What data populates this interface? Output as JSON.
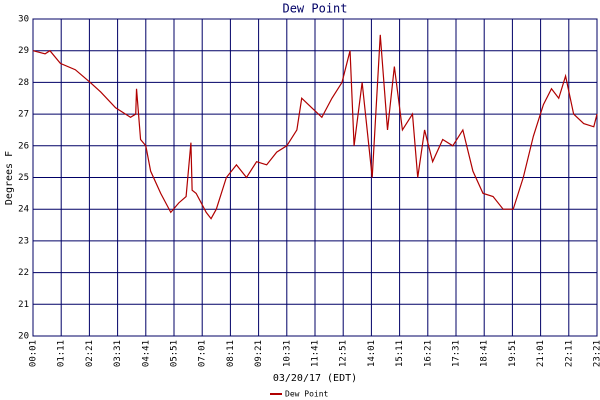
{
  "chart_data": {
    "type": "line",
    "title": "Dew Point",
    "xlabel": "03/20/17 (EDT)",
    "ylabel": "Degrees F",
    "x": [
      1,
      31,
      43,
      69,
      106,
      143,
      169,
      206,
      243,
      256,
      258,
      268,
      281,
      293,
      318,
      343,
      363,
      381,
      393,
      396,
      406,
      431,
      443,
      456,
      481,
      506,
      531,
      556,
      581,
      606,
      631,
      656,
      668,
      693,
      718,
      743,
      768,
      788,
      798,
      818,
      843,
      863,
      881,
      898,
      918,
      943,
      956,
      973,
      993,
      1018,
      1043,
      1068,
      1093,
      1118,
      1143,
      1168,
      1193,
      1218,
      1243,
      1268,
      1288,
      1306,
      1323,
      1343,
      1368,
      1393,
      1401
    ],
    "series": [
      {
        "name": "Dew Point",
        "color": "#b00000",
        "values": [
          29.0,
          28.9,
          29.0,
          28.6,
          28.4,
          28.0,
          27.7,
          27.2,
          26.9,
          27.0,
          27.8,
          26.2,
          26.0,
          25.2,
          24.5,
          23.9,
          24.2,
          24.4,
          26.1,
          24.6,
          24.5,
          23.9,
          23.7,
          24.0,
          25.0,
          25.4,
          25.0,
          25.5,
          25.4,
          25.8,
          26.0,
          26.5,
          27.5,
          27.2,
          26.9,
          27.5,
          28.0,
          29.0,
          26.0,
          28.0,
          25.0,
          29.5,
          26.5,
          28.5,
          26.5,
          27.0,
          25.0,
          26.5,
          25.5,
          26.2,
          26.0,
          26.5,
          25.2,
          24.5,
          24.4,
          24.0,
          24.0,
          25.0,
          26.3,
          27.3,
          27.8,
          27.5,
          28.2,
          27.0,
          26.7,
          26.6,
          27.0
        ]
      }
    ],
    "xlim": [
      1,
      1401
    ],
    "xticks": [
      {
        "value": 1,
        "label": "00:01"
      },
      {
        "value": 71,
        "label": "01:11"
      },
      {
        "value": 141,
        "label": "02:21"
      },
      {
        "value": 211,
        "label": "03:31"
      },
      {
        "value": 281,
        "label": "04:41"
      },
      {
        "value": 351,
        "label": "05:51"
      },
      {
        "value": 421,
        "label": "07:01"
      },
      {
        "value": 491,
        "label": "08:11"
      },
      {
        "value": 561,
        "label": "09:21"
      },
      {
        "value": 631,
        "label": "10:31"
      },
      {
        "value": 701,
        "label": "11:41"
      },
      {
        "value": 771,
        "label": "12:51"
      },
      {
        "value": 841,
        "label": "14:01"
      },
      {
        "value": 911,
        "label": "15:11"
      },
      {
        "value": 981,
        "label": "16:21"
      },
      {
        "value": 1051,
        "label": "17:31"
      },
      {
        "value": 1121,
        "label": "18:41"
      },
      {
        "value": 1191,
        "label": "19:51"
      },
      {
        "value": 1261,
        "label": "21:01"
      },
      {
        "value": 1331,
        "label": "22:11"
      },
      {
        "value": 1401,
        "label": "23:21"
      }
    ],
    "ylim": [
      20,
      30
    ],
    "yticks": [
      20,
      21,
      22,
      23,
      24,
      25,
      26,
      27,
      28,
      29,
      30
    ],
    "grid": true,
    "legend": "bottom"
  }
}
